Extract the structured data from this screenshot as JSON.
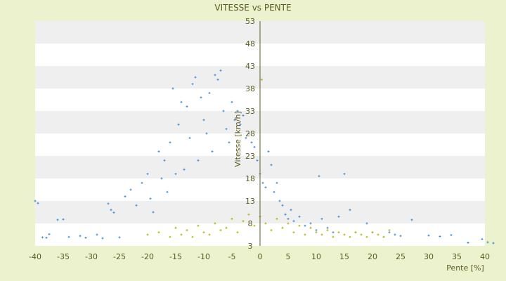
{
  "chart_data": {
    "type": "scatter",
    "title": "VITESSE vs PENTE",
    "xlabel": "Pente [%]",
    "ylabel": "Vitesse [km/h]",
    "xlim": [
      -40,
      40
    ],
    "ylim": [
      3,
      53
    ],
    "x_ticks": [
      -40,
      -35,
      -30,
      -25,
      -20,
      -15,
      -10,
      -5,
      0,
      5,
      10,
      15,
      20,
      25,
      30,
      35,
      40
    ],
    "y_ticks": [
      3,
      8,
      13,
      18,
      23,
      28,
      33,
      38,
      43,
      48,
      53
    ],
    "grid": "horizontal alternating bands",
    "legend": "none",
    "series": [
      {
        "color": "#3a8bd6",
        "marker": "+",
        "points": [
          [
            -40,
            13
          ],
          [
            -39.5,
            12.5
          ],
          [
            -38.7,
            4.9
          ],
          [
            -38,
            4.8
          ],
          [
            -37.5,
            5.6
          ],
          [
            -36,
            8.8
          ],
          [
            -35,
            8.9
          ],
          [
            -34,
            5.0
          ],
          [
            -32,
            5.2
          ],
          [
            -31,
            4.8
          ],
          [
            -29,
            5.5
          ],
          [
            -28,
            4.7
          ],
          [
            -27,
            12.4
          ],
          [
            -26.5,
            11
          ],
          [
            -26,
            10.4
          ],
          [
            -25,
            4.9
          ],
          [
            -24,
            14
          ],
          [
            -23,
            15.5
          ],
          [
            -22,
            12
          ],
          [
            -21,
            17
          ],
          [
            -20,
            19
          ],
          [
            -19.5,
            13.5
          ],
          [
            -19,
            10.5
          ],
          [
            -18,
            24
          ],
          [
            -17.5,
            18
          ],
          [
            -17,
            22
          ],
          [
            -16.5,
            15
          ],
          [
            -16,
            26
          ],
          [
            -15.5,
            38
          ],
          [
            -15,
            19
          ],
          [
            -14.5,
            30
          ],
          [
            -14,
            35
          ],
          [
            -13.5,
            20
          ],
          [
            -13,
            34
          ],
          [
            -12.5,
            27
          ],
          [
            -12,
            39
          ],
          [
            -11.5,
            40.5
          ],
          [
            -11,
            22
          ],
          [
            -10.5,
            36
          ],
          [
            -10,
            31
          ],
          [
            -9.5,
            28
          ],
          [
            -9,
            37
          ],
          [
            -8.5,
            24
          ],
          [
            -8,
            41
          ],
          [
            -7.5,
            40
          ],
          [
            -7,
            42
          ],
          [
            -6.5,
            33
          ],
          [
            -6,
            29
          ],
          [
            -5.5,
            26
          ],
          [
            -5,
            35
          ],
          [
            -4.5,
            31
          ],
          [
            -4,
            33
          ],
          [
            -3.5,
            30
          ],
          [
            -3,
            32
          ],
          [
            -2.5,
            27
          ],
          [
            -2,
            28
          ],
          [
            -1.5,
            26
          ],
          [
            -1,
            25
          ],
          [
            -0.5,
            22
          ],
          [
            0,
            19
          ],
          [
            0.5,
            17
          ],
          [
            1,
            16
          ],
          [
            1.5,
            24
          ],
          [
            2,
            21
          ],
          [
            2.5,
            15
          ],
          [
            3,
            17
          ],
          [
            3.5,
            13
          ],
          [
            4,
            12
          ],
          [
            4.5,
            10
          ],
          [
            5,
            9
          ],
          [
            5.5,
            11
          ],
          [
            6,
            8.5
          ],
          [
            7,
            9.5
          ],
          [
            8,
            7.5
          ],
          [
            9,
            8
          ],
          [
            10,
            6.5
          ],
          [
            10.5,
            18.5
          ],
          [
            11,
            9
          ],
          [
            12,
            7
          ],
          [
            13,
            6
          ],
          [
            14,
            9.5
          ],
          [
            15,
            19
          ],
          [
            16,
            11
          ],
          [
            17,
            6
          ],
          [
            18,
            5.5
          ],
          [
            19,
            8
          ],
          [
            20,
            6
          ],
          [
            21,
            5.5
          ],
          [
            22,
            5
          ],
          [
            23,
            6
          ],
          [
            24,
            5.5
          ],
          [
            25,
            5.2
          ],
          [
            27,
            8.8
          ],
          [
            30,
            5.3
          ],
          [
            32,
            5.1
          ],
          [
            34,
            5.4
          ],
          [
            37,
            3.7
          ],
          [
            39.5,
            4.5
          ],
          [
            40.5,
            3.8
          ],
          [
            41.5,
            3.6
          ]
        ]
      },
      {
        "color": "#b8b000",
        "marker": "+",
        "points": [
          [
            -20,
            5.5
          ],
          [
            -18,
            6
          ],
          [
            -16,
            5
          ],
          [
            -15,
            7
          ],
          [
            -14,
            5.5
          ],
          [
            -13,
            6.5
          ],
          [
            -12,
            5
          ],
          [
            -11,
            7.5
          ],
          [
            -10,
            6
          ],
          [
            -9,
            5.5
          ],
          [
            -8,
            8
          ],
          [
            -7,
            6.5
          ],
          [
            -6,
            7
          ],
          [
            -5,
            9
          ],
          [
            -4,
            6
          ],
          [
            -3,
            8.5
          ],
          [
            -2,
            10
          ],
          [
            -1,
            7.5
          ],
          [
            0,
            9.5
          ],
          [
            0.3,
            40
          ],
          [
            1,
            8
          ],
          [
            2,
            6.5
          ],
          [
            3,
            9
          ],
          [
            4,
            7
          ],
          [
            5,
            8
          ],
          [
            6,
            6
          ],
          [
            7,
            7.5
          ],
          [
            8,
            5.5
          ],
          [
            9,
            7
          ],
          [
            10,
            6
          ],
          [
            11,
            5.5
          ],
          [
            12,
            6.5
          ],
          [
            13,
            5
          ],
          [
            14,
            6
          ],
          [
            15,
            5.5
          ],
          [
            16,
            5
          ],
          [
            17,
            6
          ],
          [
            18,
            5.5
          ],
          [
            19,
            5
          ],
          [
            20,
            6
          ],
          [
            21,
            5.5
          ],
          [
            22,
            5
          ],
          [
            23,
            6.5
          ]
        ]
      }
    ]
  }
}
